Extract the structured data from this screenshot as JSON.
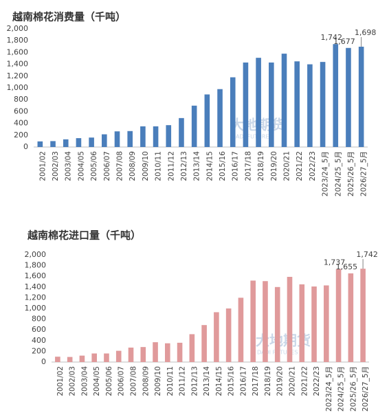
{
  "chart_data": [
    {
      "type": "bar",
      "title": "越南棉花消费量（千吨）",
      "color": "#4a7ebb",
      "categories": [
        "2001/02",
        "2002/03",
        "2003/04",
        "2004/05",
        "2005/06",
        "2006/07",
        "2007/08",
        "2008/09",
        "2009/10",
        "2010/11",
        "2011/12",
        "2012/13",
        "2013/14",
        "2014/15",
        "2015/16",
        "2016/17",
        "2017/18",
        "2018/19",
        "2019/20",
        "2020/21",
        "2021/22",
        "2022/23",
        "2023/24_5月",
        "2024/25_5月",
        "2025/26_5月",
        "2026/27_5月"
      ],
      "values": [
        95,
        100,
        130,
        150,
        160,
        215,
        265,
        270,
        350,
        350,
        370,
        490,
        700,
        890,
        980,
        1180,
        1430,
        1510,
        1430,
        1580,
        1450,
        1400,
        1440,
        1742,
        1677,
        1698
      ],
      "value_labels": [
        null,
        null,
        null,
        null,
        null,
        null,
        null,
        null,
        null,
        null,
        null,
        null,
        null,
        null,
        null,
        null,
        null,
        null,
        null,
        null,
        null,
        null,
        null,
        "1,742",
        "1,677",
        "1,698"
      ],
      "ylim": [
        0,
        2000
      ],
      "yticks": [
        0,
        200,
        400,
        600,
        800,
        {
          "value": 1000,
          "label": "1,000"
        },
        {
          "value": 1200,
          "label": "1,200"
        },
        {
          "value": 1400,
          "label": "1,400"
        },
        {
          "value": 1600,
          "label": "1,600"
        },
        {
          "value": 1800,
          "label": "1,800"
        },
        {
          "value": 2000,
          "label": "2,000"
        }
      ],
      "watermark": "大地期货",
      "watermark_sub": "DADI FUTURES"
    },
    {
      "type": "bar",
      "title": "越南棉花进口量（千吨）",
      "color": "#e09a9b",
      "categories": [
        "2001/02",
        "2002/03",
        "2003/04",
        "2004/05",
        "2005/06",
        "2006/07",
        "2007/08",
        "2008/09",
        "2009/10",
        "2010/11",
        "2011/12",
        "2012/13",
        "2013/14",
        "2014/15",
        "2015/16",
        "2016/17",
        "2017/18",
        "2018/19",
        "2019/20",
        "2020/21",
        "2021/22",
        "2022/23",
        "2023/24_5月",
        "2024/25_5月",
        "2025/26_5月",
        "2026/27_5月"
      ],
      "values": [
        100,
        95,
        120,
        160,
        160,
        210,
        270,
        280,
        370,
        350,
        360,
        520,
        690,
        930,
        1000,
        1200,
        1520,
        1510,
        1400,
        1590,
        1450,
        1410,
        1430,
        1737,
        1655,
        1742
      ],
      "value_labels": [
        null,
        null,
        null,
        null,
        null,
        null,
        null,
        null,
        null,
        null,
        null,
        null,
        null,
        null,
        null,
        null,
        null,
        null,
        null,
        null,
        null,
        null,
        null,
        "1,737",
        "1,655",
        "1,742"
      ],
      "ylim": [
        0,
        2000
      ],
      "yticks": [
        0,
        200,
        400,
        600,
        800,
        {
          "value": 1000,
          "label": "1,000"
        },
        {
          "value": 1200,
          "label": "1,200"
        },
        {
          "value": 1400,
          "label": "1,400"
        },
        {
          "value": 1600,
          "label": "1,600"
        },
        {
          "value": 1800,
          "label": "1,800"
        },
        {
          "value": 2000,
          "label": "2,000"
        }
      ],
      "watermark": "大地期货",
      "watermark_sub": "DADI FUTURES"
    }
  ]
}
